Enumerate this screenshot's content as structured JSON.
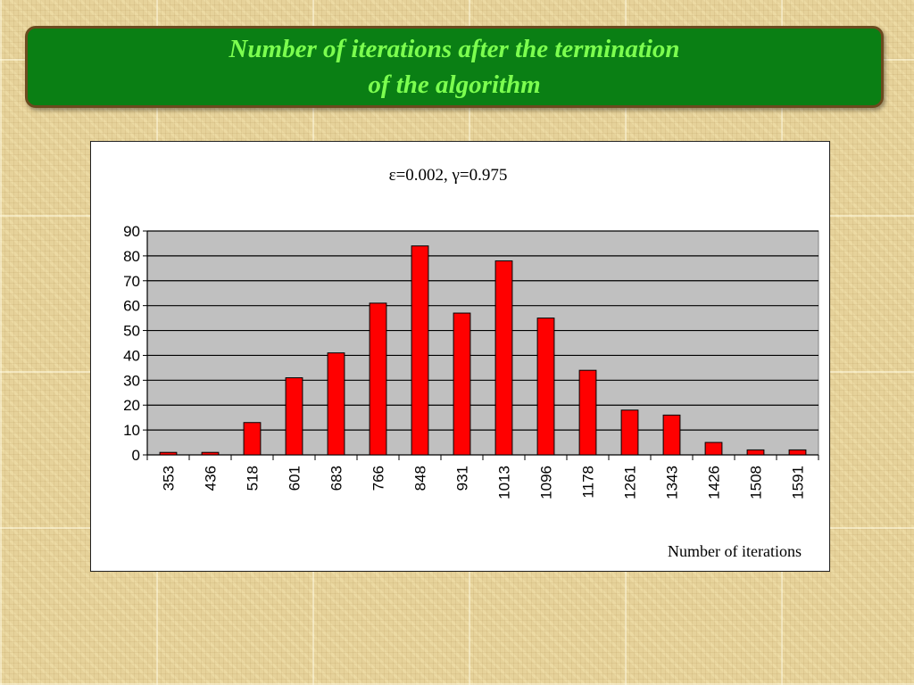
{
  "slide": {
    "title_line1": "Number of iterations after the termination",
    "title_line2": "of the algorithm"
  },
  "colors": {
    "bar": "#ff0000",
    "plot_bg": "#c0c0c0",
    "banner_bg": "#0a7f14",
    "title_text": "#7cff4f"
  },
  "chart_data": {
    "type": "bar",
    "title": "ε=0.002, γ=0.975",
    "xlabel": "Number of iterations",
    "ylabel": "",
    "categories": [
      "353",
      "436",
      "518",
      "601",
      "683",
      "766",
      "848",
      "931",
      "1013",
      "1096",
      "1178",
      "1261",
      "1343",
      "1426",
      "1508",
      "1591"
    ],
    "values": [
      1,
      1,
      13,
      31,
      41,
      61,
      84,
      57,
      78,
      55,
      34,
      18,
      16,
      5,
      2,
      2
    ],
    "ylim": [
      0,
      90
    ],
    "yticks": [
      0,
      10,
      20,
      30,
      40,
      50,
      60,
      70,
      80,
      90
    ],
    "grid": true,
    "legend": "none"
  }
}
